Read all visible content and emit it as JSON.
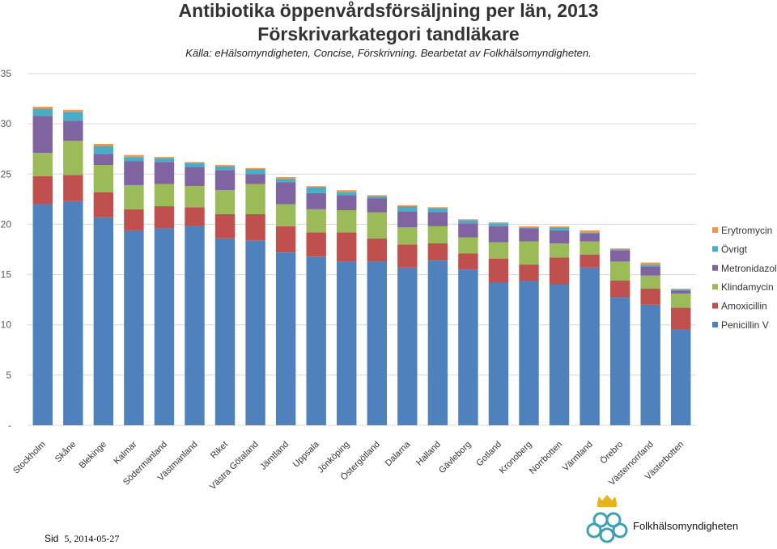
{
  "header": {
    "title": "Antibiotika öppenvårdsförsäljning per län, 2013",
    "subtitle": "Förskrivarkategori tandläkare",
    "source": "Källa: eHälsomyndigheten, Concise, Förskrivning. Bearbetat av Folkhälsomyndigheten."
  },
  "footer": {
    "sid_label": "Sid",
    "page_info": "5, 2014-05-27"
  },
  "logo": {
    "name": "Folkhälsomyndigheten",
    "icon": "folkhalsomyndigheten-logo-icon"
  },
  "chart_data": {
    "type": "bar",
    "stacked": true,
    "title": "Antibiotika öppenvårdsförsäljning per län, 2013",
    "subtitle": "Förskrivarkategori tandläkare",
    "xlabel": "",
    "ylabel": "",
    "ylim": [
      0,
      35
    ],
    "yticks": [
      "-",
      "5",
      "10",
      "15",
      "20",
      "25",
      "30",
      "35"
    ],
    "grid": true,
    "legend_position": "right",
    "categories": [
      "Stockholm",
      "Skåne",
      "Blekinge",
      "Kalmar",
      "Södermanland",
      "Västmanland",
      "Riket",
      "Västra Götaland",
      "Jämtland",
      "Uppsala",
      "Jönköping",
      "Östergötland",
      "Dalarna",
      "Halland",
      "Gävleborg",
      "Gotland",
      "Kronoberg",
      "Norrbotten",
      "Värmland",
      "Örebro",
      "Västernorrland",
      "Västerbotten"
    ],
    "series": [
      {
        "name": "Penicillin V",
        "color": "#4f81bd",
        "values": [
          22.0,
          22.3,
          20.7,
          19.4,
          19.6,
          19.8,
          18.6,
          18.4,
          17.2,
          16.8,
          16.3,
          16.3,
          15.7,
          16.4,
          15.5,
          14.2,
          14.4,
          14.0,
          15.7,
          12.7,
          12.0,
          9.5
        ]
      },
      {
        "name": "Amoxicillin",
        "color": "#c0504d",
        "values": [
          2.8,
          2.6,
          2.5,
          2.1,
          2.2,
          1.9,
          2.4,
          2.6,
          2.6,
          2.4,
          2.9,
          2.3,
          2.3,
          1.7,
          1.6,
          2.4,
          1.6,
          2.7,
          1.3,
          1.7,
          1.6,
          2.2
        ]
      },
      {
        "name": "Klindamycin",
        "color": "#9bbb59",
        "values": [
          2.3,
          3.4,
          2.7,
          2.4,
          2.2,
          2.1,
          2.4,
          3.0,
          2.2,
          2.3,
          2.2,
          2.6,
          1.7,
          1.7,
          1.6,
          1.6,
          2.3,
          1.4,
          1.3,
          1.9,
          1.3,
          1.4
        ]
      },
      {
        "name": "Metronidazol",
        "color": "#8064a2",
        "values": [
          3.7,
          2.0,
          1.1,
          2.4,
          2.2,
          1.9,
          2.0,
          1.0,
          2.2,
          1.6,
          1.5,
          1.4,
          1.6,
          1.4,
          1.4,
          1.6,
          1.3,
          1.3,
          0.8,
          1.1,
          0.9,
          0.3
        ]
      },
      {
        "name": "Övrigt",
        "color": "#4bacc6",
        "values": [
          0.7,
          0.9,
          0.8,
          0.4,
          0.4,
          0.4,
          0.4,
          0.5,
          0.3,
          0.6,
          0.3,
          0.2,
          0.5,
          0.4,
          0.3,
          0.3,
          0.1,
          0.3,
          0.1,
          0.1,
          0.2,
          0.1
        ]
      },
      {
        "name": "Erytromycin",
        "color": "#f79646",
        "values": [
          0.2,
          0.2,
          0.2,
          0.2,
          0.1,
          0.1,
          0.1,
          0.1,
          0.2,
          0.1,
          0.2,
          0.1,
          0.1,
          0.1,
          0.1,
          0.1,
          0.1,
          0.1,
          0.2,
          0.1,
          0.2,
          0.1
        ]
      }
    ]
  }
}
